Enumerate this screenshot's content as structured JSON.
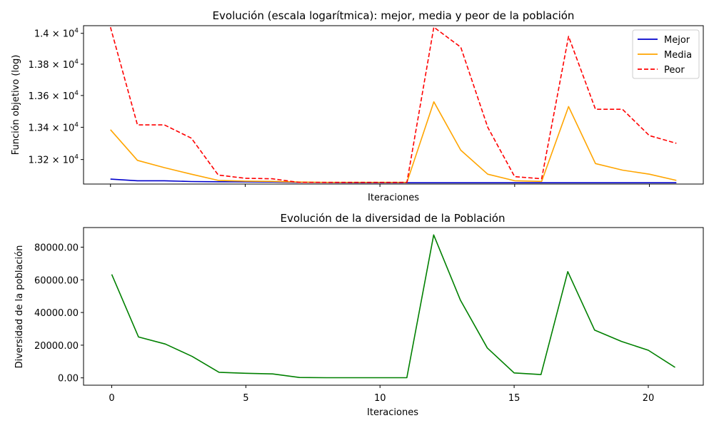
{
  "chart_data": [
    {
      "type": "line",
      "title": "Evolución (escala logarítmica): mejor, media y peor de la población",
      "xlabel": "Iteraciones",
      "ylabel": "Función objetivo (log)",
      "yscale": "log",
      "xlim": [
        -1,
        22
      ],
      "ylim": [
        13050,
        14050
      ],
      "grid": false,
      "legend": "top-right",
      "x": [
        0,
        1,
        2,
        3,
        4,
        5,
        6,
        7,
        8,
        9,
        10,
        11,
        12,
        13,
        14,
        15,
        16,
        17,
        18,
        19,
        20,
        21
      ],
      "xticks": [
        0,
        5,
        10,
        15,
        20
      ],
      "yticks": [
        {
          "value": 13200,
          "mantissa": "1.32",
          "base": "10",
          "exp": "4"
        },
        {
          "value": 13400,
          "mantissa": "1.34",
          "base": "10",
          "exp": "4"
        },
        {
          "value": 13600,
          "mantissa": "1.36",
          "base": "10",
          "exp": "4"
        },
        {
          "value": 13800,
          "mantissa": "1.38",
          "base": "10",
          "exp": "4"
        },
        {
          "value": 14000,
          "mantissa": "1.4",
          "base": "10",
          "exp": "4"
        }
      ],
      "series": [
        {
          "name": "Mejor",
          "color": "#0000cc",
          "dash": "solid",
          "values": [
            13080,
            13070,
            13070,
            13065,
            13064,
            13063,
            13062,
            13060,
            13059,
            13058,
            13058,
            13058,
            13058,
            13058,
            13058,
            13058,
            13058,
            13058,
            13058,
            13058,
            13058,
            13058
          ]
        },
        {
          "name": "Media",
          "color": "#ffa500",
          "dash": "solid",
          "values": [
            13385,
            13195,
            13150,
            13110,
            13072,
            13068,
            13066,
            13062,
            13060,
            13060,
            13060,
            13060,
            13560,
            13258,
            13110,
            13070,
            13066,
            13530,
            13175,
            13135,
            13110,
            13072
          ]
        },
        {
          "name": "Peor",
          "color": "#ff0000",
          "dash": "dashed",
          "values": [
            14040,
            13415,
            13415,
            13332,
            13105,
            13085,
            13082,
            13060,
            13060,
            13060,
            13060,
            13060,
            14040,
            13910,
            13400,
            13095,
            13082,
            13980,
            13513,
            13513,
            13348,
            13300
          ]
        }
      ]
    },
    {
      "type": "line",
      "title": "Evolución de la diversidad de la Población",
      "xlabel": "Iteraciones",
      "ylabel": "Diversidad de la población",
      "xlim": [
        -1.05,
        22.05
      ],
      "ylim": [
        -4500,
        92000
      ],
      "grid": false,
      "x": [
        0,
        1,
        2,
        3,
        4,
        5,
        6,
        7,
        8,
        9,
        10,
        11,
        12,
        13,
        14,
        15,
        16,
        17,
        18,
        19,
        20,
        21
      ],
      "xticks": [
        0,
        5,
        10,
        15,
        20
      ],
      "yticks": [
        {
          "value": 0,
          "label": "0.00"
        },
        {
          "value": 20000,
          "label": "20000.00"
        },
        {
          "value": 40000,
          "label": "40000.00"
        },
        {
          "value": 60000,
          "label": "60000.00"
        },
        {
          "value": 80000,
          "label": "80000.00"
        }
      ],
      "series": [
        {
          "color": "#008000",
          "dash": "solid",
          "values": [
            63300,
            25000,
            20700,
            13100,
            3400,
            2800,
            2400,
            200,
            100,
            100,
            100,
            100,
            87500,
            47500,
            18300,
            3000,
            2000,
            65000,
            29200,
            22300,
            16900,
            6400
          ]
        }
      ]
    }
  ]
}
